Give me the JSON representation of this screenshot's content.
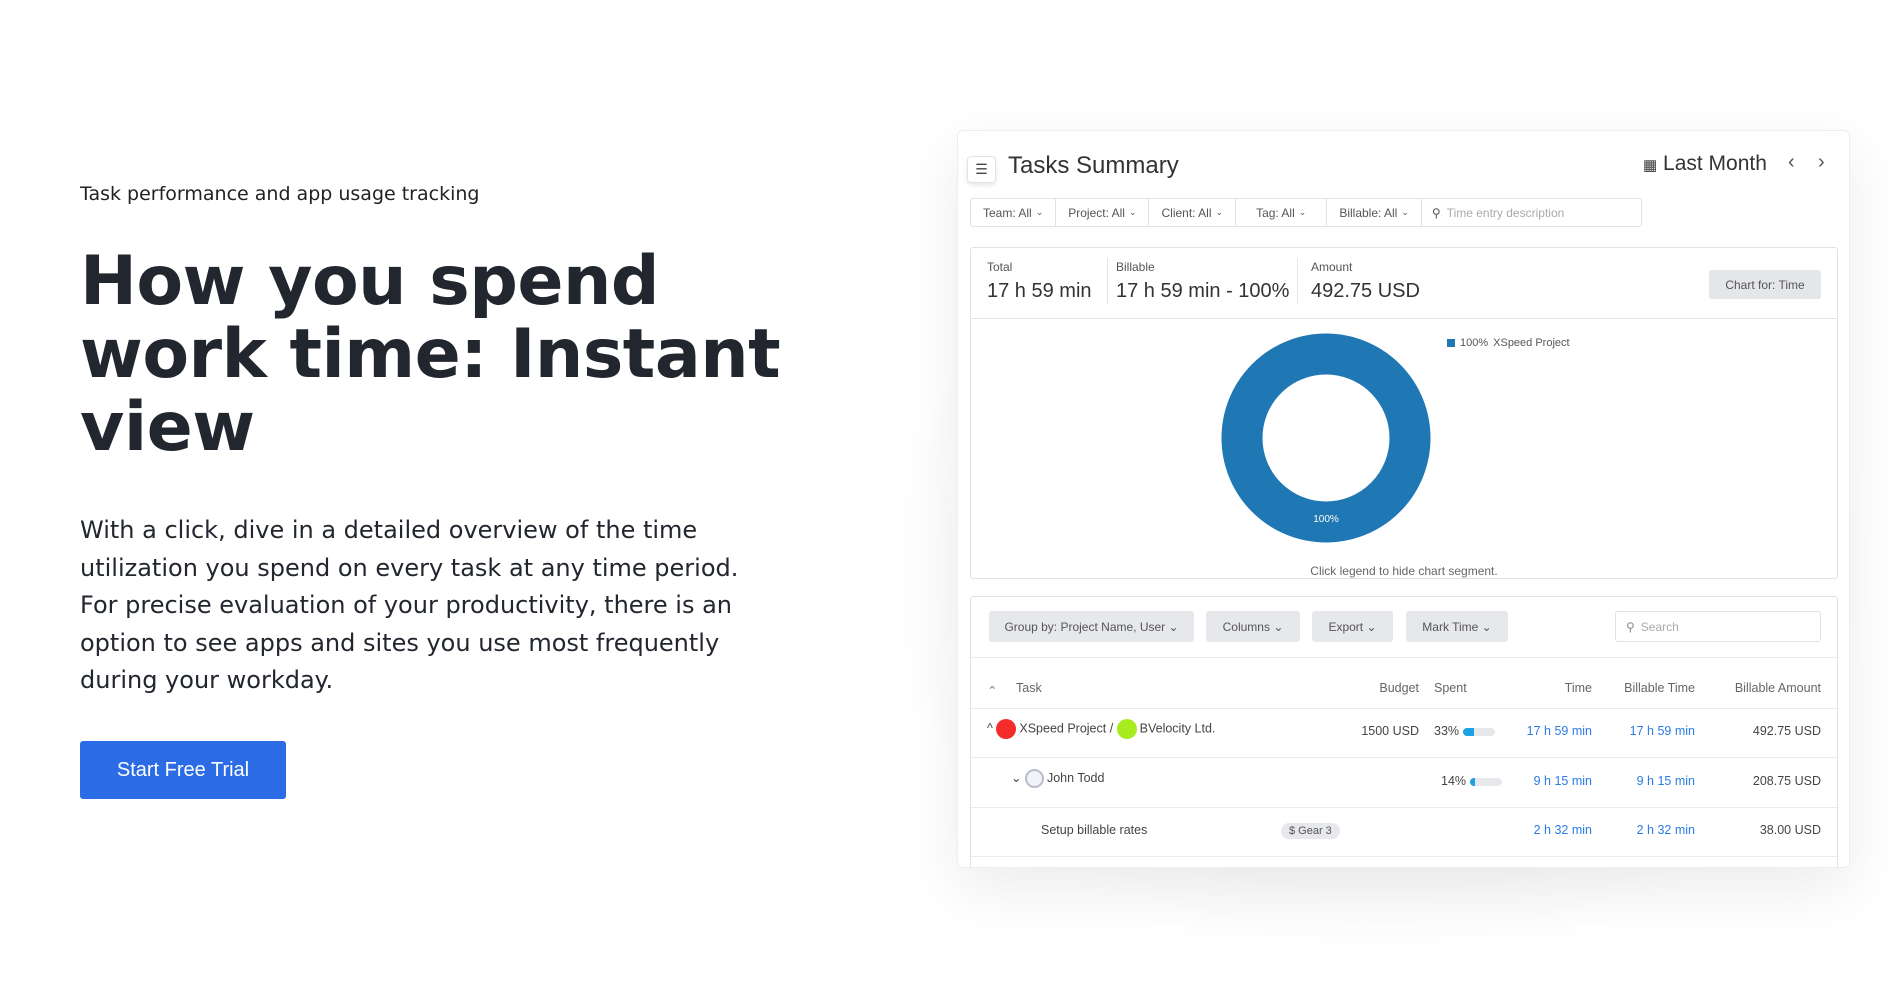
{
  "hero": {
    "eyebrow": "Task performance and app usage tracking",
    "title": "How you spend work time: Instant view",
    "description": "With a click, dive in a detailed overview of the time utilization you spend on every task at any time period. For precise evaluation of your productivity, there is an option to see apps and sites you use most frequently during your workday.",
    "cta": "Start Free Trial",
    "cta_color": "#2b6be6"
  },
  "panel": {
    "title": "Tasks Summary",
    "period": "Last Month",
    "prev": "‹",
    "next": "›",
    "filters": [
      {
        "label": "Team: All"
      },
      {
        "label": "Project: All"
      },
      {
        "label": "Client: All"
      },
      {
        "label": "Tag: All"
      },
      {
        "label": "Billable: All"
      }
    ],
    "search_placeholder": "Time entry description",
    "stats": {
      "total_label": "Total",
      "total": "17 h 59 min",
      "billable_label": "Billable",
      "billable": "17 h 59 min - ",
      "billable_pct": "100%",
      "amount_label": "Amount",
      "amount": "492.75 USD",
      "chart_for": "Chart for: Time"
    },
    "chart": {
      "legend_pct": "100%",
      "legend_name": "XSpeed Project",
      "slice_label": "100%",
      "slice_value": 100,
      "color": "#1f77b4",
      "hint": "Click legend to hide chart segment."
    },
    "toolbar": {
      "group_by": "Group by: Project Name, User",
      "columns": "Columns",
      "export": "Export",
      "mark_time": "Mark Time",
      "search_placeholder": "Search"
    },
    "table": {
      "headers": {
        "task": "Task",
        "budget": "Budget",
        "spent": "Spent",
        "time": "Time",
        "billable_time": "Billable Time",
        "billable_amount": "Billable Amount"
      },
      "rows": [
        {
          "project": "XSpeed Project",
          "client": "BVelocity Ltd.",
          "budget": "1500 USD",
          "spent": "33%",
          "spent_value": 33,
          "time": "17 h 59 min",
          "billable_time": "17 h 59 min",
          "amount": "492.75 USD"
        },
        {
          "user": "John Todd",
          "spent": "14%",
          "spent_value": 14,
          "time": "9 h 15 min",
          "billable_time": "9 h 15 min",
          "amount": "208.75 USD"
        },
        {
          "task": "Setup billable rates",
          "tag": "$ Gear 3",
          "time": "2 h 32 min",
          "billable_time": "2 h 32 min",
          "amount": "38.00 USD"
        }
      ]
    }
  }
}
